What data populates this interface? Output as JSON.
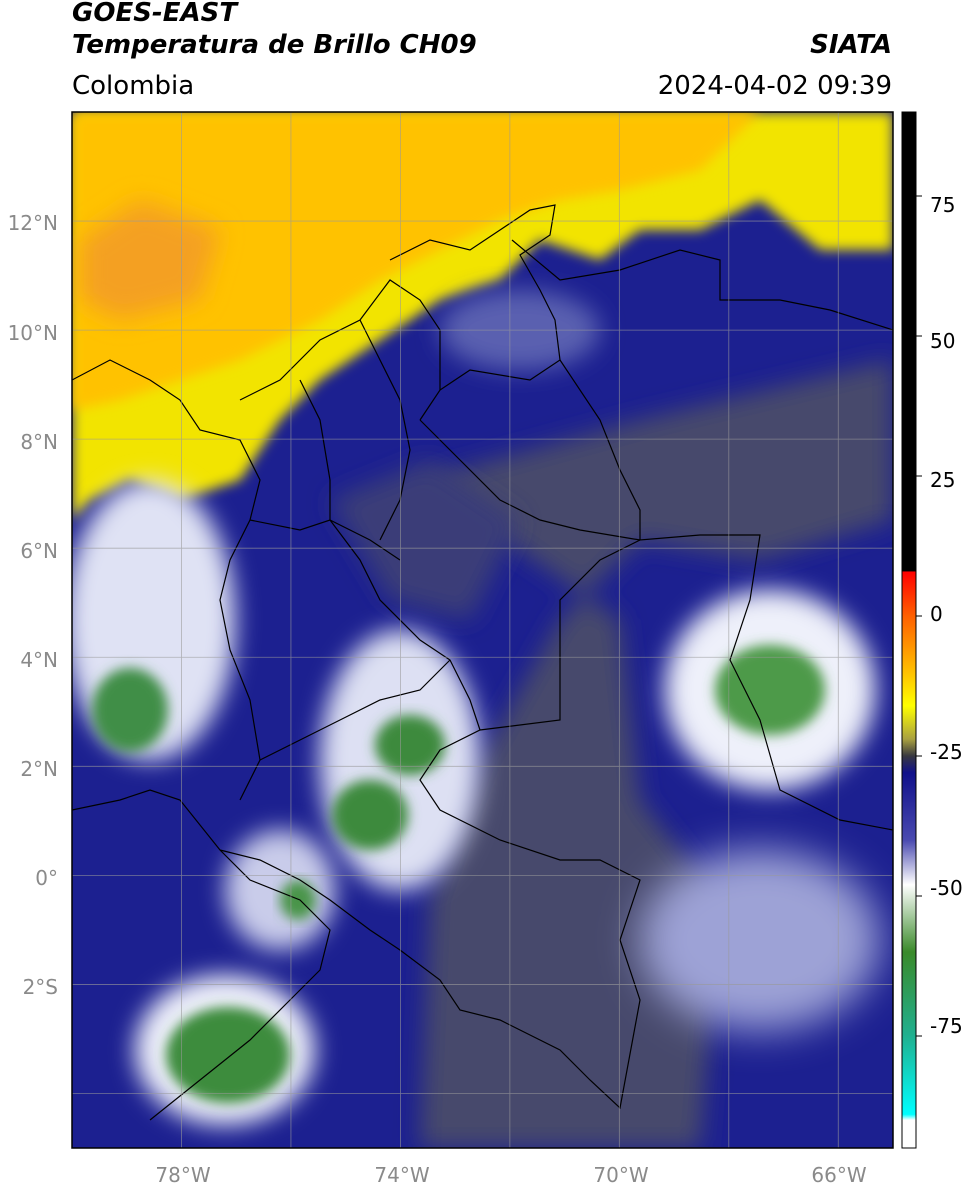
{
  "header": {
    "title_line1": "GOES-EAST",
    "title_line2": "Temperatura de Brillo CH09",
    "region": "Colombia",
    "source": "SIATA",
    "datetime": "2024-04-02 09:39"
  },
  "map": {
    "lon_range": [
      -80,
      -65
    ],
    "lat_range": [
      -5,
      14
    ],
    "lon_ticks": [
      "78°W",
      "74°W",
      "70°W",
      "66°W"
    ],
    "lat_ticks": [
      "12°N",
      "10°N",
      "8°N",
      "6°N",
      "4°N",
      "2°N",
      "0°",
      "2°S"
    ],
    "grid": true,
    "colors": {
      "ocean_warm": "#ffc400",
      "warm_orange": "#f59c1f",
      "yellow": "#f8ef00",
      "dark_blue": "#1a1f8a",
      "gray_blue": "#45486a",
      "white": "#f4f4fb",
      "green": "#3a8a3a",
      "border": "#000000"
    }
  },
  "colorbar": {
    "ticks": [
      "75",
      "50",
      "25",
      "0",
      "-25",
      "-50",
      "-75"
    ],
    "tick_values": [
      75,
      50,
      25,
      0,
      -25,
      -50,
      -75
    ],
    "range": [
      -95,
      90
    ],
    "stops": [
      {
        "v": 90,
        "c": "#000000"
      },
      {
        "v": 8,
        "c": "#000000"
      },
      {
        "v": 7.9,
        "c": "#ff0000"
      },
      {
        "v": 0,
        "c": "#ff6000"
      },
      {
        "v": -10,
        "c": "#ffc000"
      },
      {
        "v": -16,
        "c": "#ffff00"
      },
      {
        "v": -22,
        "c": "#a8a040"
      },
      {
        "v": -25,
        "c": "#383840"
      },
      {
        "v": -28,
        "c": "#10108a"
      },
      {
        "v": -40,
        "c": "#4a4ab0"
      },
      {
        "v": -48,
        "c": "#ffffff"
      },
      {
        "v": -60,
        "c": "#3a8a2a"
      },
      {
        "v": -75,
        "c": "#20b090"
      },
      {
        "v": -89,
        "c": "#00ffff"
      },
      {
        "v": -90,
        "c": "#ffffff"
      },
      {
        "v": -95,
        "c": "#ffffff"
      }
    ]
  }
}
